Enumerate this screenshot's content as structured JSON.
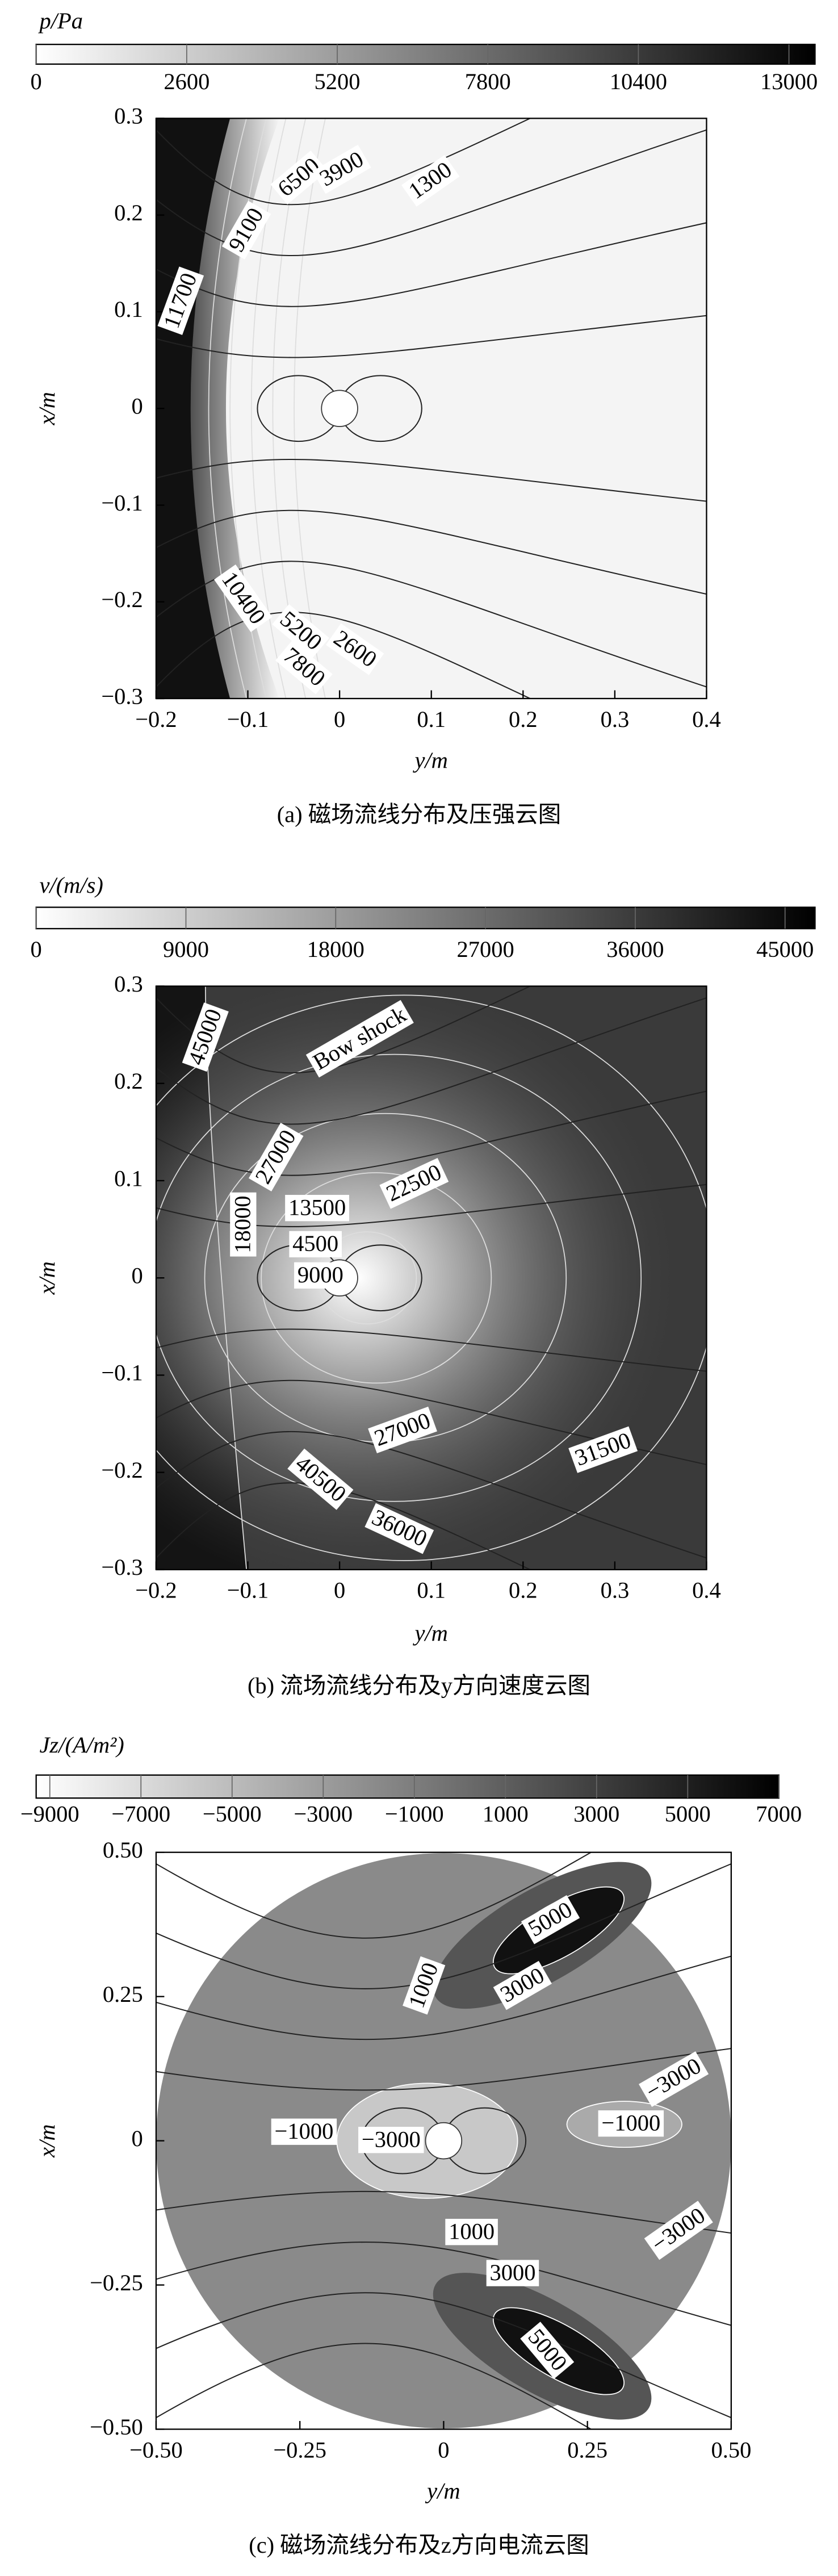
{
  "chart_data": [
    {
      "type": "contour",
      "colorbar_label": "p/Pa",
      "clim": [
        0,
        13450
      ],
      "colorbar_ticks": [
        0,
        2600,
        5200,
        7800,
        10400,
        13000
      ],
      "xlabel": "y/m",
      "ylabel": "x/m",
      "xlim": [
        -0.2,
        0.4
      ],
      "ylim": [
        -0.3,
        0.3
      ],
      "xticks": [
        {
          "value": -0.2,
          "label": "−0.2"
        },
        {
          "value": -0.1,
          "label": "−0.1"
        },
        0,
        0.1,
        0.2,
        0.3,
        0.4
      ],
      "yticks": [
        {
          "value": -0.3,
          "label": "−0.3"
        },
        {
          "value": -0.2,
          "label": "−0.2"
        },
        {
          "value": -0.1,
          "label": "−0.1"
        },
        0,
        0.1,
        0.2,
        0.3
      ],
      "contour_labels": [
        9100,
        6500,
        3900,
        1300,
        11700,
        10400,
        5200,
        7800,
        2600
      ],
      "caption": "(a) 磁场流线分布及压强云图"
    },
    {
      "type": "contour",
      "colorbar_label": "v/(m/s)",
      "clim": [
        0,
        46800
      ],
      "colorbar_ticks": [
        0,
        9000,
        18000,
        27000,
        36000,
        45000
      ],
      "xlabel": "y/m",
      "ylabel": "x/m",
      "xlim": [
        -0.2,
        0.4
      ],
      "ylim": [
        -0.3,
        0.3
      ],
      "xticks": [
        {
          "value": -0.2,
          "label": "−0.2"
        },
        {
          "value": -0.1,
          "label": "−0.1"
        },
        0,
        0.1,
        0.2,
        0.3,
        0.4
      ],
      "yticks": [
        {
          "value": -0.3,
          "label": "−0.3"
        },
        {
          "value": -0.2,
          "label": "−0.2"
        },
        {
          "value": -0.1,
          "label": "−0.1"
        },
        0,
        0.1,
        0.2,
        0.3
      ],
      "contour_labels": [
        45000,
        27000,
        22500,
        13500,
        4500,
        18000,
        9000,
        27000,
        31500,
        40500,
        36000
      ],
      "annotations": [
        "Bow shock"
      ],
      "caption": "(b) 流场流线分布及y方向速度云图"
    },
    {
      "type": "contour",
      "colorbar_label": "Jz/(A/m²)",
      "clim": [
        -9300,
        7000
      ],
      "colorbar_ticks": [
        {
          "value": -9000,
          "label": "−9000"
        },
        {
          "value": -7000,
          "label": "−7000"
        },
        {
          "value": -5000,
          "label": "−5000"
        },
        {
          "value": -3000,
          "label": "−3000"
        },
        {
          "value": -1000,
          "label": "−1000"
        },
        1000,
        3000,
        5000,
        7000
      ],
      "xlabel": "y/m",
      "ylabel": "x/m",
      "xlim": [
        -0.5,
        0.5
      ],
      "ylim": [
        -0.5,
        0.5
      ],
      "xticks": [
        {
          "value": -0.5,
          "label": "−0.50"
        },
        {
          "value": -0.25,
          "label": "−0.25"
        },
        0,
        0.25,
        {
          "value": 0.5,
          "label": "0.50"
        }
      ],
      "yticks": [
        {
          "value": -0.5,
          "label": "−0.50"
        },
        {
          "value": -0.25,
          "label": "−0.25"
        },
        0,
        0.25,
        {
          "value": 0.5,
          "label": "0.50"
        }
      ],
      "contour_labels": [
        5000,
        1000,
        3000,
        {
          "value": -3000,
          "label": "−3000"
        },
        {
          "value": -1000,
          "label": "−1000"
        },
        {
          "value": -3000,
          "label": "−3000"
        },
        {
          "value": -1000,
          "label": "−1000"
        },
        {
          "value": -3000,
          "label": "−3000"
        },
        1000,
        3000,
        5000
      ],
      "caption": "(c) 磁场流线分布及z方向电流云图"
    }
  ]
}
